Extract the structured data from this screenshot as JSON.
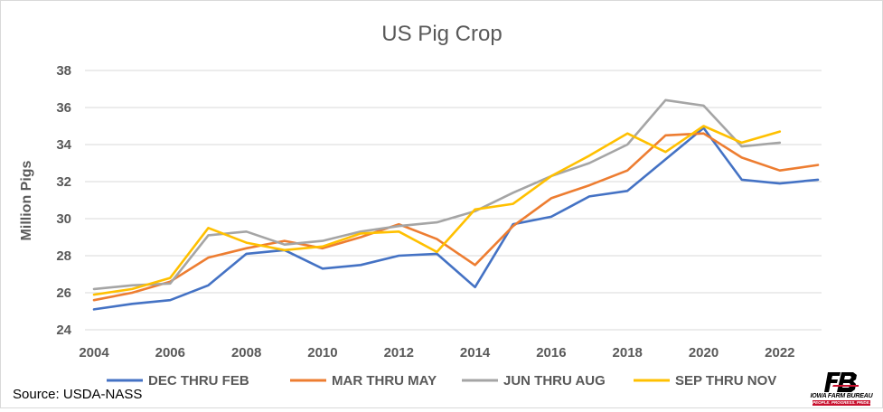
{
  "chart_data": {
    "type": "line",
    "title": "US Pig Crop",
    "xlabel": "",
    "ylabel": "Million Pigs",
    "x": [
      2004,
      2005,
      2006,
      2007,
      2008,
      2009,
      2010,
      2011,
      2012,
      2013,
      2014,
      2015,
      2016,
      2017,
      2018,
      2019,
      2020,
      2021,
      2022,
      2023
    ],
    "xlim": [
      2004,
      2023
    ],
    "ylim": [
      24,
      38
    ],
    "x_ticks": [
      2004,
      2006,
      2008,
      2010,
      2012,
      2014,
      2016,
      2018,
      2020,
      2022
    ],
    "y_ticks": [
      24,
      26,
      28,
      30,
      32,
      34,
      36,
      38
    ],
    "grid": "horizontal",
    "legend_position": "bottom",
    "series": [
      {
        "name": "DEC THRU FEB",
        "color": "#4472c4",
        "values": [
          25.1,
          25.4,
          25.6,
          26.4,
          28.1,
          28.3,
          27.3,
          27.5,
          28.0,
          28.1,
          26.3,
          29.7,
          30.1,
          31.2,
          31.5,
          33.2,
          34.9,
          32.1,
          31.9,
          32.1
        ]
      },
      {
        "name": "MAR THRU MAY",
        "color": "#ed7d31",
        "values": [
          25.6,
          26.0,
          26.6,
          27.9,
          28.4,
          28.8,
          28.4,
          29.0,
          29.7,
          28.9,
          27.5,
          29.6,
          31.1,
          31.8,
          32.6,
          34.5,
          34.6,
          33.3,
          32.6,
          32.9
        ]
      },
      {
        "name": "JUN THRU AUG",
        "color": "#a5a5a5",
        "values": [
          26.2,
          26.4,
          26.5,
          29.1,
          29.3,
          28.6,
          28.8,
          29.3,
          29.6,
          29.8,
          30.4,
          31.4,
          32.3,
          33.0,
          34.0,
          36.4,
          36.1,
          33.9,
          34.1,
          null
        ]
      },
      {
        "name": "SEP THRU NOV",
        "color": "#ffc000",
        "values": [
          25.9,
          26.2,
          26.8,
          29.5,
          28.7,
          28.3,
          28.5,
          29.2,
          29.3,
          28.2,
          30.5,
          30.8,
          32.3,
          33.4,
          34.6,
          33.6,
          35.0,
          34.1,
          34.7,
          null
        ]
      }
    ]
  },
  "source": "Source: USDA-NASS",
  "logo": {
    "name": "IOWA FARM BUREAU",
    "tagline": "PEOPLE. PROGRESS. PRIDE.",
    "accent": "#c8102e"
  }
}
